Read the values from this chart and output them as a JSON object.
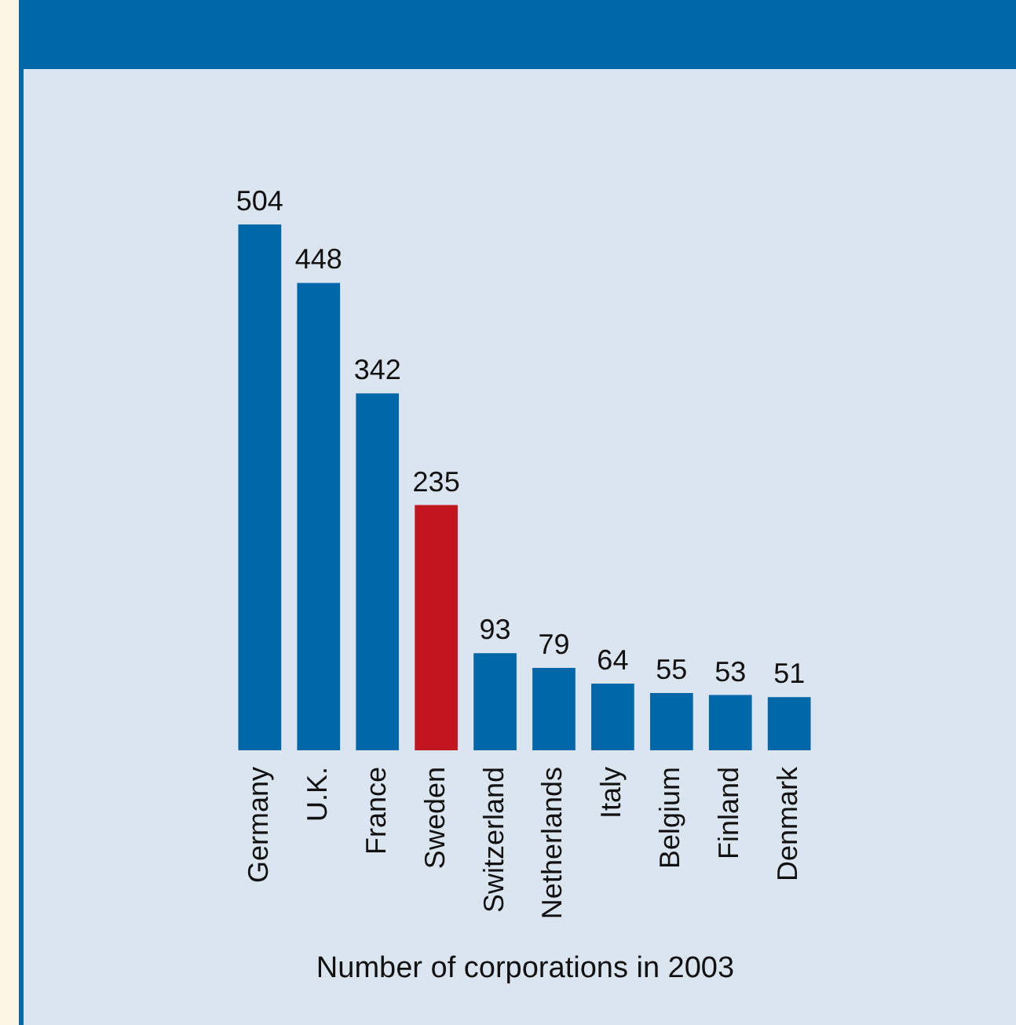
{
  "chart_data": {
    "type": "bar",
    "xlabel": "Number of corporations in 2003",
    "categories": [
      "Germany",
      "U.K.",
      "France",
      "Sweden",
      "Switzerland",
      "Netherlands",
      "Italy",
      "Belgium",
      "Finland",
      "Denmark"
    ],
    "values": [
      504,
      448,
      342,
      235,
      93,
      79,
      64,
      55,
      53,
      51
    ],
    "colors": [
      "#0067a9",
      "#0067a9",
      "#0067a9",
      "#c1161f",
      "#0067a9",
      "#0067a9",
      "#0067a9",
      "#0067a9",
      "#0067a9",
      "#0067a9"
    ],
    "data_labels": true
  }
}
